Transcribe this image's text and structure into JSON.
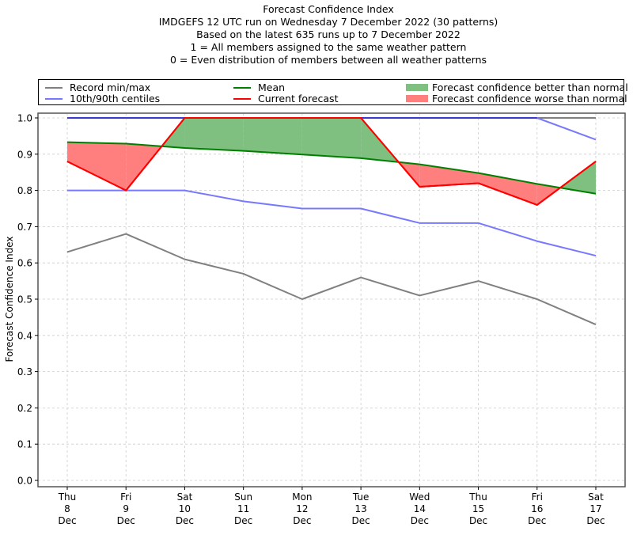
{
  "chart_data": {
    "type": "line",
    "title": "Forecast Confidence Index",
    "subtitle_lines": [
      "IMDGEFS 12 UTC run on Wednesday 7 December 2022 (30 patterns)",
      "Based on the latest 635 runs up to 7 December 2022",
      "1 = All members assigned to the same weather pattern",
      "0 = Even distribution of members between all weather patterns"
    ],
    "xlabel": "",
    "ylabel": "Forecast Confidence Index",
    "ylim": [
      0.0,
      1.0
    ],
    "yticks": [
      "0.0",
      "0.1",
      "0.2",
      "0.3",
      "0.4",
      "0.5",
      "0.6",
      "0.7",
      "0.8",
      "0.9",
      "1.0"
    ],
    "grid": true,
    "categories": [
      {
        "day": "Thu",
        "date": "8",
        "month": "Dec"
      },
      {
        "day": "Fri",
        "date": "9",
        "month": "Dec"
      },
      {
        "day": "Sat",
        "date": "10",
        "month": "Dec"
      },
      {
        "day": "Sun",
        "date": "11",
        "month": "Dec"
      },
      {
        "day": "Mon",
        "date": "12",
        "month": "Dec"
      },
      {
        "day": "Tue",
        "date": "13",
        "month": "Dec"
      },
      {
        "day": "Wed",
        "date": "14",
        "month": "Dec"
      },
      {
        "day": "Thu",
        "date": "15",
        "month": "Dec"
      },
      {
        "day": "Fri",
        "date": "16",
        "month": "Dec"
      },
      {
        "day": "Sat",
        "date": "17",
        "month": "Dec"
      }
    ],
    "series": [
      {
        "name": "Record max",
        "color": "#808080",
        "values": [
          1.0,
          1.0,
          1.0,
          1.0,
          1.0,
          1.0,
          1.0,
          1.0,
          1.0,
          1.0
        ]
      },
      {
        "name": "Record min",
        "color": "#808080",
        "values": [
          0.63,
          0.68,
          0.61,
          0.57,
          0.5,
          0.56,
          0.51,
          0.55,
          0.5,
          0.43
        ]
      },
      {
        "name": "90th centile",
        "color": "#7878ff",
        "values": [
          1.0,
          1.0,
          1.0,
          1.0,
          1.0,
          1.0,
          1.0,
          1.0,
          1.0,
          0.94
        ]
      },
      {
        "name": "10th centile",
        "color": "#7878ff",
        "values": [
          0.8,
          0.8,
          0.8,
          0.77,
          0.75,
          0.75,
          0.71,
          0.71,
          0.66,
          0.62
        ]
      },
      {
        "name": "Mean",
        "color": "#008000",
        "values": [
          0.933,
          0.929,
          0.917,
          0.909,
          0.899,
          0.889,
          0.872,
          0.848,
          0.818,
          0.791
        ]
      },
      {
        "name": "Current forecast",
        "color": "#ff0000",
        "values": [
          0.88,
          0.8,
          1.0,
          1.0,
          1.0,
          1.0,
          0.81,
          0.82,
          0.76,
          0.88
        ]
      }
    ],
    "fills": {
      "better": {
        "label": "Forecast confidence better than normal",
        "color": "#7fbf7f"
      },
      "worse": {
        "label": "Forecast confidence worse than normal",
        "color": "#ff7f7f"
      }
    },
    "legend": {
      "placement": "top",
      "entries": [
        {
          "label": "Record min/max",
          "kind": "line",
          "color": "#808080"
        },
        {
          "label": "10th/90th centiles",
          "kind": "line",
          "color": "#7878ff"
        },
        {
          "label": "Mean",
          "kind": "line",
          "color": "#008000"
        },
        {
          "label": "Current forecast",
          "kind": "line",
          "color": "#ff0000"
        },
        {
          "label": "Forecast confidence better than normal",
          "kind": "patch",
          "color": "#7fbf7f"
        },
        {
          "label": "Forecast confidence worse than normal",
          "kind": "patch",
          "color": "#ff7f7f"
        }
      ]
    }
  }
}
